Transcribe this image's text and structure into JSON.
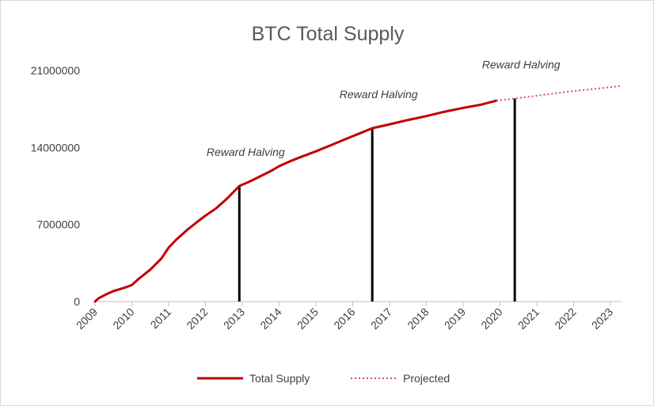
{
  "chart_data": {
    "type": "line",
    "title": "BTC Total Supply",
    "xlabel": "",
    "ylabel": "",
    "xlim": [
      2009,
      2023.3
    ],
    "ylim": [
      0,
      21000000
    ],
    "yticks": [
      0,
      7000000,
      14000000,
      21000000
    ],
    "ytick_labels": [
      "0",
      "7000000",
      "14000000",
      "21000000"
    ],
    "xticks": [
      2009,
      2010,
      2011,
      2012,
      2013,
      2014,
      2015,
      2016,
      2017,
      2018,
      2019,
      2020,
      2021,
      2022,
      2023
    ],
    "xtick_labels": [
      "2009",
      "2010",
      "2011",
      "2012",
      "2013",
      "2014",
      "2015",
      "2016",
      "2017",
      "2018",
      "2019",
      "2020",
      "2021",
      "2022",
      "2023"
    ],
    "grid": false,
    "legend_position": "bottom",
    "series": [
      {
        "name": "Total Supply",
        "style": "solid",
        "color": "#c00000",
        "x": [
          2009.0,
          2009.1,
          2009.3,
          2009.5,
          2009.8,
          2010.0,
          2010.2,
          2010.5,
          2010.8,
          2011.0,
          2011.2,
          2011.5,
          2011.8,
          2012.0,
          2012.3,
          2012.6,
          2012.92,
          2013.2,
          2013.5,
          2013.8,
          2014.0,
          2014.3,
          2014.6,
          2015.0,
          2015.4,
          2015.8,
          2016.2,
          2016.53,
          2017.0,
          2017.5,
          2018.0,
          2018.5,
          2019.0,
          2019.5,
          2019.9
        ],
        "y": [
          0,
          300000,
          650000,
          950000,
          1250000,
          1500000,
          2100000,
          2900000,
          3900000,
          4900000,
          5600000,
          6500000,
          7300000,
          7800000,
          8500000,
          9400000,
          10500000,
          10900000,
          11400000,
          11900000,
          12300000,
          12750000,
          13150000,
          13650000,
          14200000,
          14750000,
          15300000,
          15750000,
          16100000,
          16500000,
          16850000,
          17250000,
          17600000,
          17900000,
          18250000
        ]
      },
      {
        "name": "Projected",
        "style": "dotted",
        "color": "#e05050",
        "x": [
          2019.9,
          2020.4,
          2021.0,
          2021.5,
          2022.0,
          2022.5,
          2023.0,
          2023.3
        ],
        "y": [
          18250000,
          18450000,
          18700000,
          18920000,
          19120000,
          19300000,
          19480000,
          19580000
        ]
      }
    ],
    "halvings": [
      {
        "x": 2012.92,
        "y": 10500000,
        "label": "Reward Halving"
      },
      {
        "x": 2016.53,
        "y": 15750000,
        "label": "Reward Halving"
      },
      {
        "x": 2020.4,
        "y": 18450000,
        "label": "Reward Halving"
      }
    ]
  }
}
